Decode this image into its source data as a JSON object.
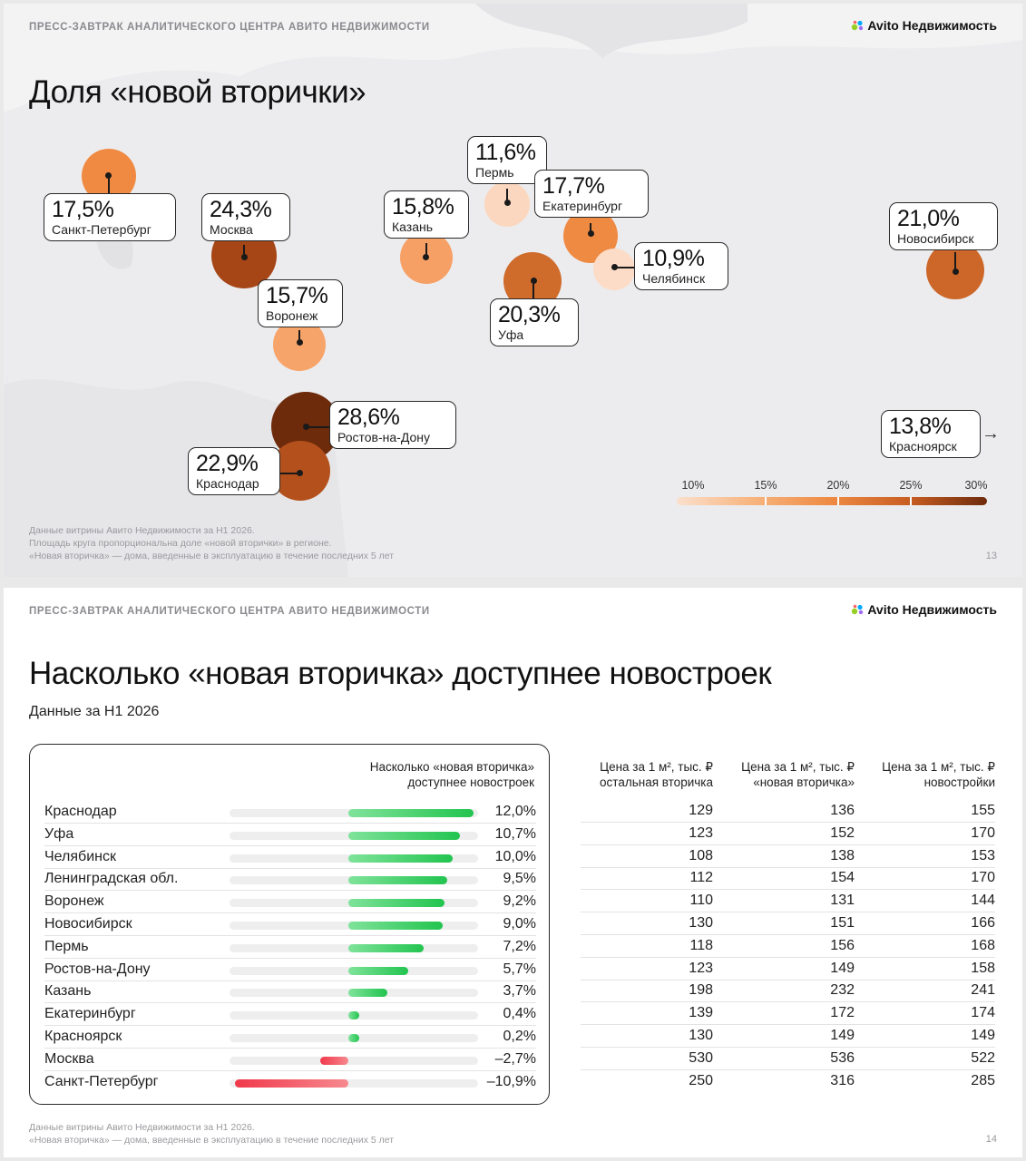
{
  "header": {
    "kicker": "ПРЕСС-ЗАВТРАК АНАЛИТИЧЕСКОГО ЦЕНТРА АВИТО НЕДВИЖИМОСТИ",
    "logo_text": "Avito Недвижимость",
    "logo_colors": [
      "#00aaff",
      "#97cf26",
      "#a169f7",
      "#ff6163"
    ]
  },
  "slide1": {
    "title": "Доля «новой вторички»",
    "page": "13",
    "cities": [
      {
        "pct": "17,5%",
        "name": "Санкт-Петербург",
        "value": 17.5
      },
      {
        "pct": "24,3%",
        "name": "Москва",
        "value": 24.3
      },
      {
        "pct": "15,7%",
        "name": "Воронеж",
        "value": 15.7
      },
      {
        "pct": "15,8%",
        "name": "Казань",
        "value": 15.8
      },
      {
        "pct": "11,6%",
        "name": "Пермь",
        "value": 11.6
      },
      {
        "pct": "17,7%",
        "name": "Екатеринбург",
        "value": 17.7
      },
      {
        "pct": "10,9%",
        "name": "Челябинск",
        "value": 10.9
      },
      {
        "pct": "20,3%",
        "name": "Уфа",
        "value": 20.3
      },
      {
        "pct": "21,0%",
        "name": "Новосибирск",
        "value": 21.0
      },
      {
        "pct": "28,6%",
        "name": "Ростов-на-Дону",
        "value": 28.6
      },
      {
        "pct": "22,9%",
        "name": "Краснодар",
        "value": 22.9
      },
      {
        "pct": "13,8%",
        "name": "Красноярск",
        "value": 13.8
      }
    ],
    "legend": [
      "10%",
      "15%",
      "20%",
      "25%",
      "30%"
    ],
    "footnotes": [
      "Данные витрины Авито Недвижимости за Н1 2026.",
      "Площадь круга пропорциональна доле «новой вторички» в регионе.",
      "«Новая вторичка» — дома, введенные в эксплуатацию в течение последних 5 лет"
    ]
  },
  "slide2": {
    "title": "Насколько «новая вторичка» доступнее новостроек",
    "subtitle": "Данные за Н1 2026",
    "page": "14",
    "headers": {
      "diff_line1": "Насколько «новая вторичка»",
      "diff_line2": "доступнее новостроек",
      "col1_line1": "Цена за 1 м², тыс. ₽",
      "col1_line2": "остальная вторичка",
      "col2_line1": "Цена за 1 м², тыс. ₽",
      "col2_line2": "«новая вторичка»",
      "col3_line1": "Цена за 1 м², тыс. ₽",
      "col3_line2": "новостройки"
    },
    "rows": [
      {
        "name": "Краснодар",
        "diff": "12,0%",
        "value": 12.0,
        "other": "129",
        "newsec": "136",
        "newb": "155"
      },
      {
        "name": "Уфа",
        "diff": "10,7%",
        "value": 10.7,
        "other": "123",
        "newsec": "152",
        "newb": "170"
      },
      {
        "name": "Челябинск",
        "diff": "10,0%",
        "value": 10.0,
        "other": "108",
        "newsec": "138",
        "newb": "153"
      },
      {
        "name": "Ленинградская обл.",
        "diff": "9,5%",
        "value": 9.5,
        "other": "112",
        "newsec": "154",
        "newb": "170"
      },
      {
        "name": "Воронеж",
        "diff": "9,2%",
        "value": 9.2,
        "other": "110",
        "newsec": "131",
        "newb": "144"
      },
      {
        "name": "Новосибирск",
        "diff": "9,0%",
        "value": 9.0,
        "other": "130",
        "newsec": "151",
        "newb": "166"
      },
      {
        "name": "Пермь",
        "diff": "7,2%",
        "value": 7.2,
        "other": "118",
        "newsec": "156",
        "newb": "168"
      },
      {
        "name": "Ростов-на-Дону",
        "diff": "5,7%",
        "value": 5.7,
        "other": "123",
        "newsec": "149",
        "newb": "158"
      },
      {
        "name": "Казань",
        "diff": "3,7%",
        "value": 3.7,
        "other": "198",
        "newsec": "232",
        "newb": "241"
      },
      {
        "name": "Екатеринбург",
        "diff": "0,4%",
        "value": 0.4,
        "other": "139",
        "newsec": "172",
        "newb": "174"
      },
      {
        "name": "Красноярск",
        "diff": "0,2%",
        "value": 0.2,
        "other": "130",
        "newsec": "149",
        "newb": "149"
      },
      {
        "name": "Москва",
        "diff": "–2,7%",
        "value": -2.7,
        "other": "530",
        "newsec": "536",
        "newb": "522"
      },
      {
        "name": "Санкт-Петербург",
        "diff": "–10,9%",
        "value": -10.9,
        "other": "250",
        "newsec": "316",
        "newb": "285"
      }
    ],
    "footnotes": [
      "Данные витрины Авито Недвижимости за Н1 2026.",
      "«Новая вторичка» — дома, введенные в эксплуатацию в течение последних 5 лет"
    ]
  }
}
